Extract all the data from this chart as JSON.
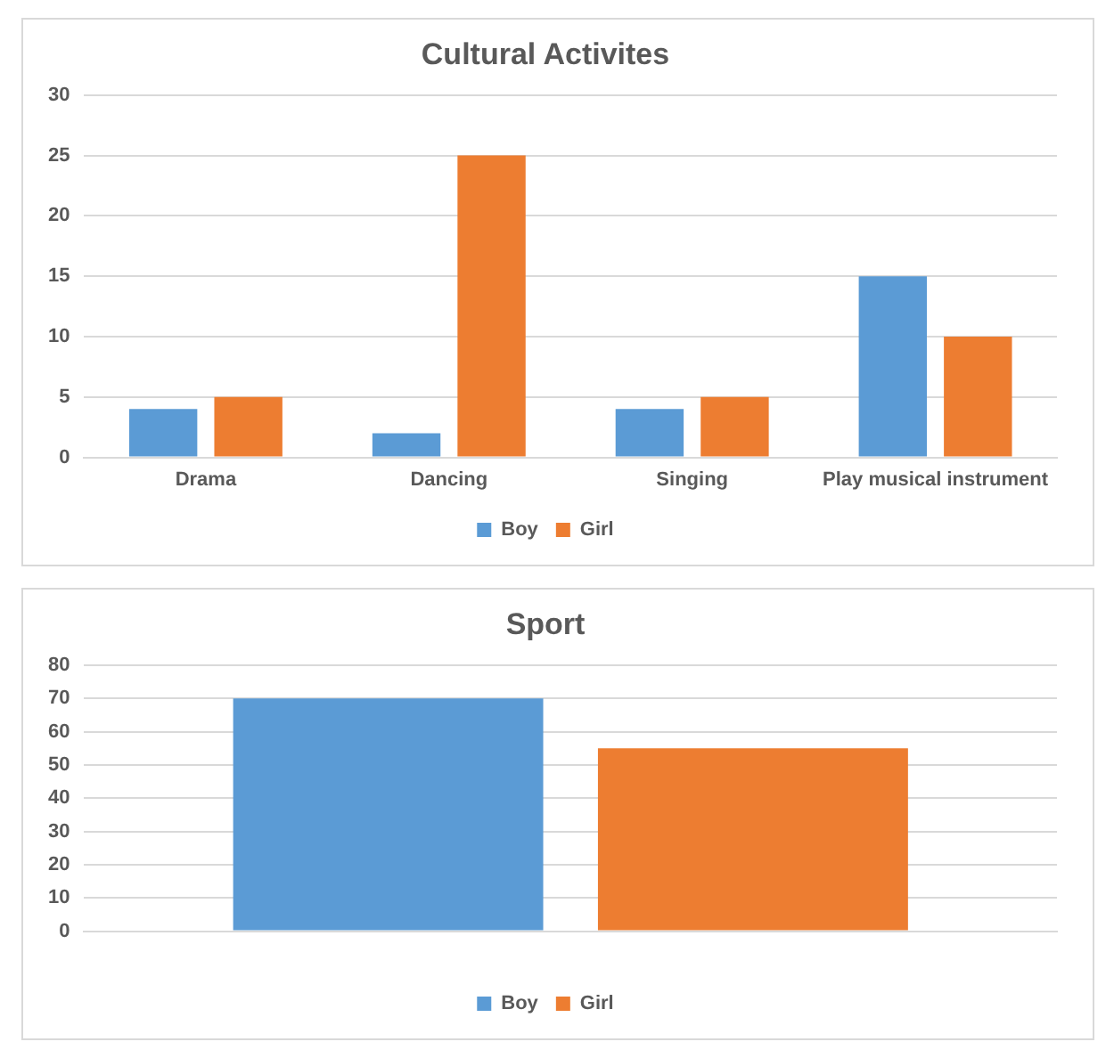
{
  "chart_data": [
    {
      "type": "bar",
      "title": "Cultural Activites",
      "categories": [
        "Drama",
        "Dancing",
        "Singing",
        "Play musical instrument"
      ],
      "series": [
        {
          "name": "Boy",
          "color": "#5b9bd5",
          "values": [
            4,
            2,
            4,
            15
          ]
        },
        {
          "name": "Girl",
          "color": "#ed7d31",
          "values": [
            5,
            25,
            5,
            10
          ]
        }
      ],
      "ylim": [
        0,
        30
      ],
      "yticks": [
        0,
        5,
        10,
        15,
        20,
        25,
        30
      ],
      "grid": "y",
      "legend": "bottom"
    },
    {
      "type": "bar",
      "title": "Sport",
      "categories": [
        null
      ],
      "series": [
        {
          "name": "Boy",
          "color": "#5b9bd5",
          "values": [
            70
          ]
        },
        {
          "name": "Girl",
          "color": "#ed7d31",
          "values": [
            55
          ]
        }
      ],
      "ylim": [
        0,
        80
      ],
      "yticks": [
        0,
        10,
        20,
        30,
        40,
        50,
        60,
        70,
        80
      ],
      "grid": "y",
      "legend": "bottom"
    }
  ]
}
